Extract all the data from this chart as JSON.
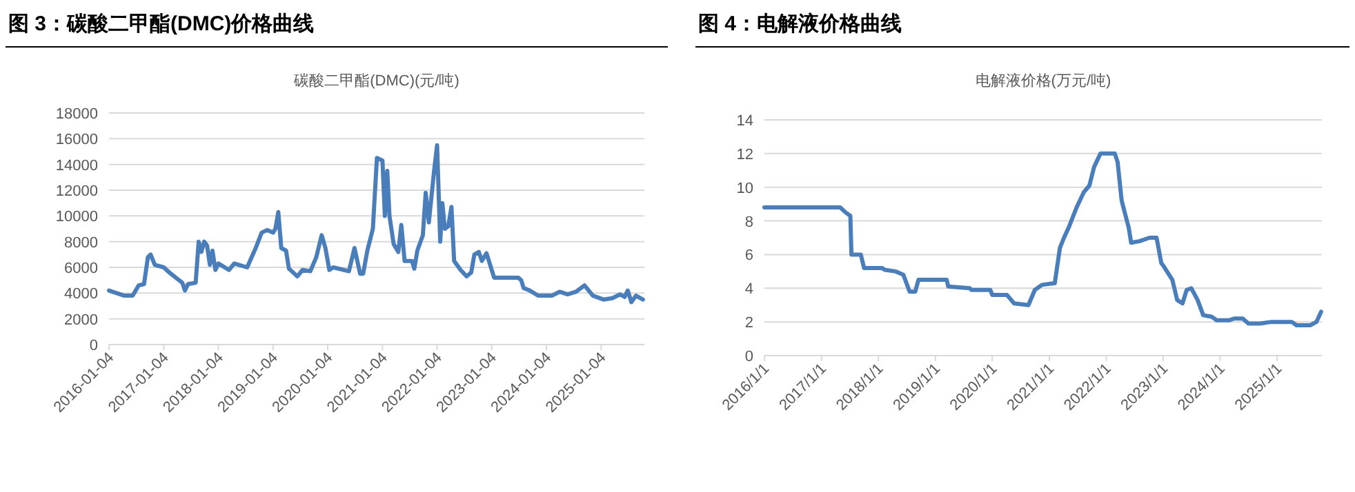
{
  "chart_data": [
    {
      "type": "line",
      "title": "图 3：碳酸二甲酯(DMC)价格曲线",
      "subtitle": "碳酸二甲酯(DMC)(元/吨)",
      "grid": "y",
      "marker": "none",
      "line_style": "solid",
      "ylim": [
        0,
        18000
      ],
      "yticks": [
        0,
        2000,
        4000,
        6000,
        8000,
        10000,
        12000,
        14000,
        16000,
        18000
      ],
      "xlim": [
        "2016-01-04",
        "2025-10-20"
      ],
      "xticks": [
        "2016-01-04",
        "2017-01-04",
        "2018-01-04",
        "2019-01-04",
        "2020-01-04",
        "2021-01-04",
        "2022-01-04",
        "2023-01-04",
        "2024-01-04",
        "2025-01-04"
      ],
      "x": [
        "2016-01-04",
        "2016-04-15",
        "2016-06-10",
        "2016-07-20",
        "2016-08-25",
        "2016-09-20",
        "2016-10-08",
        "2016-11-05",
        "2017-01-04",
        "2017-02-10",
        "2017-05-08",
        "2017-05-25",
        "2017-06-15",
        "2017-08-05",
        "2017-08-25",
        "2017-09-12",
        "2017-10-01",
        "2017-10-20",
        "2017-11-08",
        "2017-11-25",
        "2017-12-15",
        "2018-01-04",
        "2018-03-15",
        "2018-04-20",
        "2018-07-15",
        "2018-09-10",
        "2018-10-20",
        "2018-11-25",
        "2019-01-04",
        "2019-01-20",
        "2019-02-08",
        "2019-02-28",
        "2019-04-01",
        "2019-04-20",
        "2019-06-15",
        "2019-07-20",
        "2019-09-10",
        "2019-10-20",
        "2019-11-25",
        "2019-12-20",
        "2020-01-15",
        "2020-02-10",
        "2020-05-25",
        "2020-07-01",
        "2020-08-08",
        "2020-08-28",
        "2020-09-25",
        "2020-11-01",
        "2020-11-28",
        "2021-01-04",
        "2021-01-20",
        "2021-02-05",
        "2021-02-20",
        "2021-03-20",
        "2021-04-20",
        "2021-05-10",
        "2021-06-01",
        "2021-07-20",
        "2021-08-05",
        "2021-08-25",
        "2021-10-01",
        "2021-10-20",
        "2021-11-10",
        "2021-12-15",
        "2022-01-04",
        "2022-01-25",
        "2022-02-08",
        "2022-02-25",
        "2022-03-20",
        "2022-04-10",
        "2022-04-28",
        "2022-06-10",
        "2022-07-20",
        "2022-08-20",
        "2022-09-10",
        "2022-10-10",
        "2022-10-30",
        "2022-11-30",
        "2023-01-20",
        "2023-07-01",
        "2023-07-20",
        "2023-08-05",
        "2023-09-15",
        "2023-11-10",
        "2024-02-10",
        "2024-04-01",
        "2024-05-25",
        "2024-07-20",
        "2024-09-15",
        "2024-11-10",
        "2025-01-20",
        "2025-03-20",
        "2025-05-10",
        "2025-06-10",
        "2025-07-01",
        "2025-07-25",
        "2025-08-25",
        "2025-10-10"
      ],
      "series": [
        {
          "color": "#4a7ebb",
          "values": [
            4200,
            3800,
            3800,
            4600,
            4700,
            6800,
            7000,
            6200,
            6000,
            5600,
            4800,
            4200,
            4700,
            4800,
            8000,
            7200,
            8000,
            7700,
            6200,
            7300,
            5800,
            6300,
            5800,
            6300,
            6000,
            7500,
            8700,
            8900,
            8700,
            9000,
            10300,
            7500,
            7300,
            5900,
            5300,
            5800,
            5700,
            6800,
            8500,
            7500,
            5800,
            6000,
            5700,
            7500,
            5500,
            5500,
            7300,
            9000,
            14500,
            14300,
            10000,
            13500,
            10000,
            7800,
            7200,
            9300,
            6500,
            6500,
            5900,
            7300,
            8500,
            11800,
            9500,
            13500,
            15500,
            8000,
            11000,
            9000,
            9200,
            10700,
            6500,
            5800,
            5300,
            5600,
            7000,
            7200,
            6500,
            7100,
            5200,
            5200,
            5000,
            4400,
            4200,
            3800,
            3800,
            4100,
            3900,
            4100,
            4600,
            3800,
            3500,
            3600,
            3900,
            3700,
            4200,
            3300,
            3800,
            3500
          ]
        }
      ]
    },
    {
      "type": "line",
      "title": "图 4：电解液价格曲线",
      "subtitle": "电解液价格(万元/吨)",
      "grid": "y",
      "marker": "none",
      "line_style": "solid",
      "ylim": [
        0,
        14
      ],
      "yticks": [
        0,
        2,
        4,
        6,
        8,
        10,
        12,
        14
      ],
      "xlim": [
        "2016-01-01",
        "2025-10-15"
      ],
      "xticks": [
        {
          "value": "2016-01-01",
          "label": "2016/1/1"
        },
        {
          "value": "2017-01-01",
          "label": "2017/1/1"
        },
        {
          "value": "2018-01-01",
          "label": "2018/1/1"
        },
        {
          "value": "2019-01-01",
          "label": "2019/1/1"
        },
        {
          "value": "2020-01-01",
          "label": "2020/1/1"
        },
        {
          "value": "2021-01-01",
          "label": "2021/1/1"
        },
        {
          "value": "2022-01-01",
          "label": "2022/1/1"
        },
        {
          "value": "2023-01-01",
          "label": "2023/1/1"
        },
        {
          "value": "2024-01-01",
          "label": "2024/1/1"
        },
        {
          "value": "2025-01-01",
          "label": "2025/1/1"
        }
      ],
      "x": [
        "2016-01-01",
        "2017-05-01",
        "2017-06-05",
        "2017-07-05",
        "2017-07-12",
        "2017-09-10",
        "2017-10-01",
        "2018-01-25",
        "2018-02-10",
        "2018-04-20",
        "2018-06-10",
        "2018-07-20",
        "2018-08-25",
        "2018-09-15",
        "2019-03-15",
        "2019-03-25",
        "2019-08-10",
        "2019-08-20",
        "2019-12-20",
        "2020-01-01",
        "2020-04-05",
        "2020-05-20",
        "2020-08-20",
        "2020-09-30",
        "2020-11-15",
        "2021-02-05",
        "2021-03-10",
        "2021-04-05",
        "2021-05-05",
        "2021-06-25",
        "2021-08-10",
        "2021-09-15",
        "2021-10-15",
        "2021-11-25",
        "2022-02-25",
        "2022-03-15",
        "2022-04-10",
        "2022-05-25",
        "2022-06-10",
        "2022-08-05",
        "2022-10-05",
        "2022-11-20",
        "2022-12-20",
        "2023-01-05",
        "2023-03-01",
        "2023-04-01",
        "2023-05-05",
        "2023-06-01",
        "2023-07-01",
        "2023-08-10",
        "2023-09-15",
        "2023-11-10",
        "2023-12-10",
        "2024-03-01",
        "2024-04-01",
        "2024-05-25",
        "2024-07-01",
        "2024-09-15",
        "2024-11-25",
        "2025-04-05",
        "2025-05-05",
        "2025-08-01",
        "2025-09-10",
        "2025-10-10"
      ],
      "series": [
        {
          "color": "#4a7ebb",
          "values": [
            8.8,
            8.8,
            8.5,
            8.3,
            6.0,
            6.0,
            5.2,
            5.2,
            5.1,
            5.0,
            4.8,
            3.8,
            3.8,
            4.5,
            4.5,
            4.1,
            4.0,
            3.9,
            3.9,
            3.6,
            3.6,
            3.1,
            3.0,
            3.9,
            4.2,
            4.3,
            6.4,
            7.0,
            7.6,
            8.8,
            9.7,
            10.1,
            11.2,
            12.0,
            12.0,
            11.5,
            9.2,
            7.6,
            6.7,
            6.8,
            7.0,
            7.0,
            5.5,
            5.3,
            4.5,
            3.3,
            3.1,
            3.9,
            4.0,
            3.3,
            2.4,
            2.3,
            2.1,
            2.1,
            2.2,
            2.2,
            1.9,
            1.9,
            2.0,
            2.0,
            1.8,
            1.8,
            2.0,
            2.6
          ]
        }
      ]
    }
  ]
}
